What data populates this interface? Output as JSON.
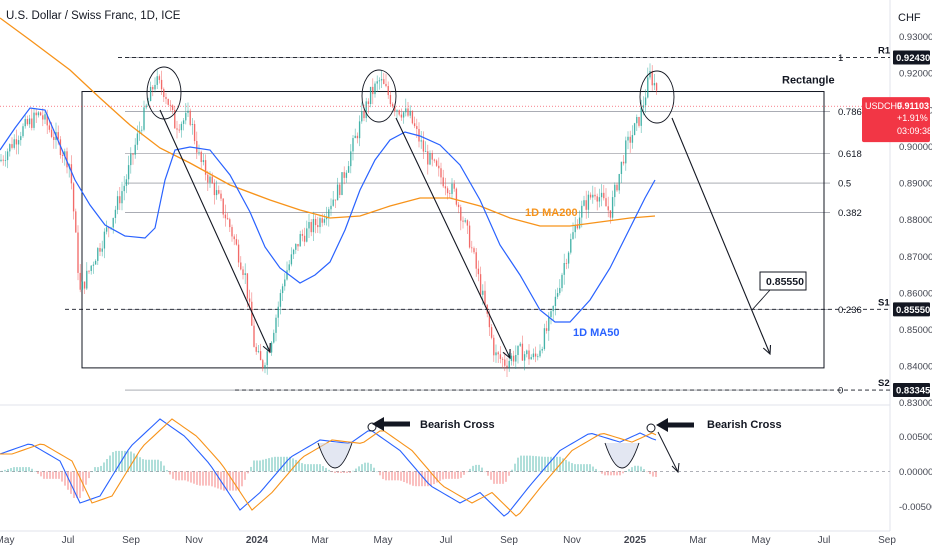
{
  "header": {
    "title": "U.S. Dollar / Swiss Franc, 1D, ICE",
    "currency": "CHF"
  },
  "price_badge": {
    "symbol": "USDCHF",
    "price": "0.91103",
    "change": "+1.91%",
    "countdown": "03:09:38",
    "color": "#f23645"
  },
  "annotations": {
    "rectangle": "Rectangle",
    "target": "0.85550",
    "ma200": "1D MA200",
    "ma50": "1D MA50",
    "bearish_cross_1": "Bearish Cross",
    "bearish_cross_2": "Bearish Cross",
    "r1": "R1",
    "s1": "S1",
    "s2": "S2"
  },
  "colors": {
    "candle_up": "#26a69a",
    "candle_down": "#ef5350",
    "ma50": "#2962ff",
    "ma200": "#f7931a",
    "axis_text": "#131722"
  },
  "chart_data": {
    "type": "candlestick",
    "x_axis": {
      "ticks": [
        "May",
        "Jul",
        "Sep",
        "Nov",
        "2024",
        "Mar",
        "May",
        "Jul",
        "Sep",
        "Nov",
        "2025",
        "Mar",
        "May",
        "Jul",
        "Sep"
      ]
    },
    "y_axis": {
      "ticks": [
        "0.93000",
        "0.92000",
        "0.91000",
        "0.90000",
        "0.89000",
        "0.88000",
        "0.87000",
        "0.86000",
        "0.85000",
        "0.84000",
        "0.83000"
      ],
      "range": [
        0.828,
        0.94
      ]
    },
    "price_labels": [
      {
        "value": 0.9243,
        "text": "0.92430"
      },
      {
        "value": 0.8555,
        "text": "0.85550"
      },
      {
        "value": 0.83345,
        "text": "0.83345"
      }
    ],
    "fibonacci": [
      {
        "level": "1",
        "price": 0.9243
      },
      {
        "level": "0.786",
        "price": 0.9096
      },
      {
        "level": "0.618",
        "price": 0.8981
      },
      {
        "level": "0.5",
        "price": 0.89
      },
      {
        "level": "0.382",
        "price": 0.8819
      },
      {
        "level": "0.236",
        "price": 0.8555
      },
      {
        "level": "0",
        "price": 0.83345
      }
    ],
    "rectangle": {
      "top": 0.915,
      "bottom": 0.8395
    },
    "series": [
      {
        "name": "1D MA200",
        "role": "ma200"
      },
      {
        "name": "1D MA50",
        "role": "ma50"
      }
    ],
    "oscillator": {
      "ticks": [
        "0.00500",
        "0.00000",
        "-0.00500"
      ],
      "range": [
        -0.0085,
        0.0095
      ]
    }
  }
}
